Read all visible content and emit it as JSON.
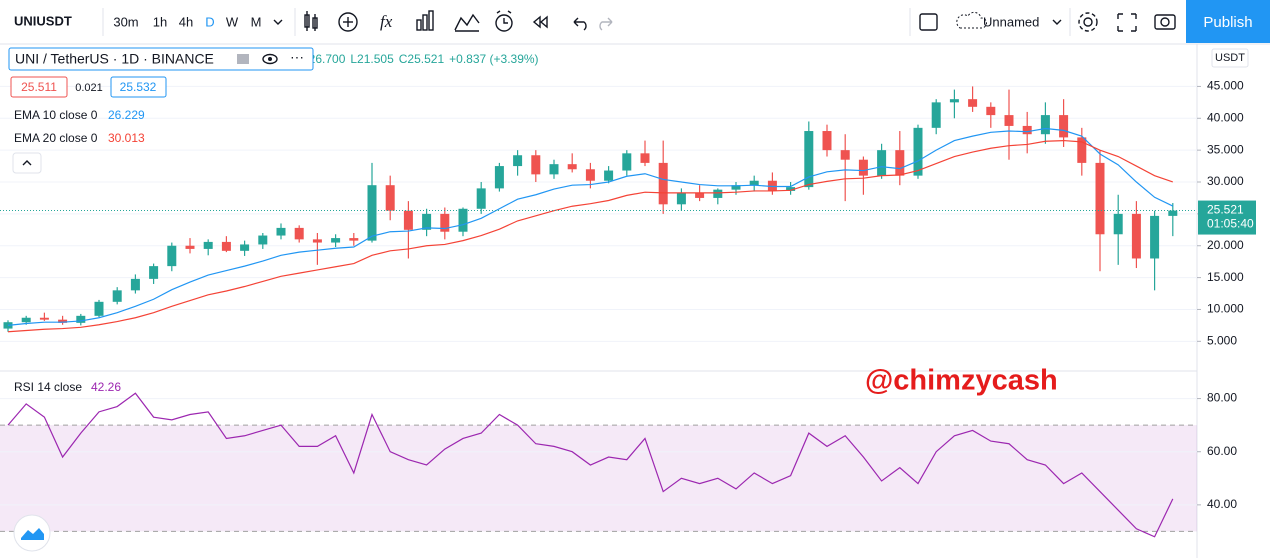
{
  "toolbar": {
    "symbol": "UNIUSDT",
    "intervals": [
      "30m",
      "1h",
      "4h",
      "D",
      "W",
      "M"
    ],
    "layout_name": "Unnamed",
    "publish": "Publish"
  },
  "legend": {
    "symbol_title": "UNI / TetherUS · 1D · BINANCE",
    "ohlc": [
      "H26.700",
      "L21.505",
      "C25.521",
      "+0.837 (+3.39%)"
    ],
    "bid": "25.511",
    "spread": "0.021",
    "ask": "25.532"
  },
  "watermark": "@chimzycash",
  "chart_data": [
    {
      "type": "candlestick",
      "y_axis_label": "USDT",
      "up_color": "#26a69a",
      "down_color": "#ef5350",
      "open": [
        7.0,
        8.0,
        8.7,
        8.4,
        7.9,
        9.0,
        11.2,
        13.0,
        14.8,
        16.8,
        20.0,
        19.5,
        20.6,
        19.2,
        20.2,
        21.6,
        22.8,
        21.0,
        20.5,
        21.2,
        20.8,
        29.5,
        25.5,
        22.5,
        25.0,
        22.2,
        25.8,
        29.0,
        32.5,
        34.2,
        31.2,
        32.8,
        32.0,
        30.2,
        31.8,
        34.5,
        33.0,
        26.5,
        28.2,
        27.5,
        28.8,
        29.5,
        30.2,
        28.6,
        29.2,
        38.0,
        35.0,
        33.5,
        31.0,
        35.0,
        31.0,
        38.5,
        42.5,
        43.0,
        41.8,
        40.5,
        38.8,
        37.5,
        40.5,
        37.0,
        33.0,
        21.8,
        25.0,
        18.0,
        24.684
      ],
      "high": [
        8.3,
        9.0,
        9.5,
        9.0,
        9.3,
        11.5,
        13.5,
        15.5,
        17.2,
        20.5,
        21.2,
        21.0,
        21.5,
        20.8,
        22.0,
        23.5,
        23.2,
        22.0,
        21.8,
        22.0,
        33.0,
        31.0,
        27.0,
        25.8,
        26.0,
        26.0,
        30.0,
        33.0,
        35.0,
        35.0,
        33.5,
        34.5,
        33.0,
        32.5,
        35.0,
        36.5,
        36.5,
        29.0,
        29.5,
        29.0,
        30.0,
        31.0,
        31.5,
        30.0,
        39.5,
        39.0,
        37.5,
        34.0,
        36.0,
        38.0,
        39.0,
        43.0,
        44.5,
        45.0,
        42.5,
        44.5,
        41.0,
        42.5,
        43.0,
        38.5,
        35.0,
        28.0,
        27.0,
        25.5,
        26.7
      ],
      "low": [
        6.5,
        7.6,
        8.2,
        7.6,
        7.5,
        8.8,
        10.8,
        12.5,
        14.0,
        16.0,
        18.8,
        18.5,
        19.0,
        18.4,
        19.5,
        21.0,
        20.5,
        17.0,
        19.8,
        20.0,
        20.5,
        24.0,
        18.0,
        21.5,
        21.0,
        21.5,
        25.0,
        28.5,
        31.0,
        30.0,
        30.5,
        31.5,
        29.0,
        29.8,
        31.0,
        32.5,
        25.0,
        25.5,
        27.0,
        26.5,
        28.0,
        28.5,
        28.0,
        28.0,
        28.8,
        34.0,
        27.0,
        28.0,
        30.5,
        29.5,
        30.5,
        37.5,
        40.0,
        41.0,
        38.5,
        33.5,
        34.5,
        36.0,
        35.5,
        31.0,
        16.0,
        17.0,
        16.5,
        13.0,
        21.505
      ],
      "close": [
        8.0,
        8.7,
        8.4,
        7.9,
        9.0,
        11.2,
        13.0,
        14.8,
        16.8,
        20.0,
        19.5,
        20.6,
        19.2,
        20.2,
        21.6,
        22.8,
        21.0,
        20.5,
        21.2,
        20.8,
        29.5,
        25.5,
        22.5,
        25.0,
        22.2,
        25.8,
        29.0,
        32.5,
        34.2,
        31.2,
        32.8,
        32.0,
        30.2,
        31.8,
        34.5,
        33.0,
        26.5,
        28.2,
        27.5,
        28.8,
        29.5,
        30.2,
        28.6,
        29.2,
        38.0,
        35.0,
        33.5,
        31.0,
        35.0,
        31.0,
        38.5,
        42.5,
        43.0,
        41.8,
        40.5,
        38.8,
        37.5,
        40.5,
        37.0,
        33.0,
        21.8,
        25.0,
        18.0,
        24.684,
        25.521
      ],
      "series": [
        {
          "name": "EMA 10 close 0",
          "legend_value": "26.229",
          "color": "#2196f3",
          "values": [
            7.5,
            7.8,
            8.0,
            8.0,
            8.2,
            8.7,
            9.5,
            10.5,
            11.6,
            13.1,
            14.3,
            15.4,
            16.1,
            16.8,
            17.6,
            18.5,
            19.0,
            19.3,
            19.6,
            19.8,
            21.5,
            22.2,
            22.3,
            22.8,
            22.7,
            23.3,
            24.3,
            25.8,
            27.3,
            28.0,
            28.9,
            29.5,
            29.6,
            30.0,
            30.9,
            31.3,
            30.4,
            30.0,
            29.6,
            29.4,
            29.4,
            29.5,
            29.3,
            29.3,
            30.8,
            31.6,
            31.9,
            31.8,
            32.4,
            32.1,
            33.3,
            35.0,
            36.5,
            37.2,
            37.8,
            38.0,
            37.9,
            38.4,
            38.1,
            37.2,
            34.4,
            32.7,
            30.0,
            27.6,
            26.229
          ]
        },
        {
          "name": "EMA 20 close 0",
          "legend_value": "30.013",
          "color": "#f44336",
          "values": [
            6.5,
            6.7,
            6.9,
            7.0,
            7.2,
            7.6,
            8.1,
            8.7,
            9.5,
            10.5,
            11.4,
            12.3,
            12.9,
            13.6,
            14.4,
            15.2,
            15.7,
            16.2,
            16.7,
            17.2,
            18.5,
            19.2,
            19.5,
            20.0,
            20.2,
            20.8,
            21.6,
            22.6,
            23.9,
            24.7,
            25.5,
            26.2,
            26.6,
            27.1,
            27.9,
            28.4,
            28.3,
            28.3,
            28.3,
            28.3,
            28.4,
            28.6,
            28.6,
            28.7,
            29.6,
            30.1,
            30.5,
            30.6,
            31.0,
            31.1,
            31.8,
            32.9,
            34.0,
            34.7,
            35.3,
            35.7,
            35.9,
            36.4,
            36.5,
            36.3,
            35.0,
            34.0,
            32.5,
            31.0,
            30.013
          ]
        }
      ],
      "last_price": {
        "label": "25.521",
        "countdown": "01:05:40"
      },
      "ylim": [
        0.5,
        51.5
      ],
      "yticks": [
        {
          "value": 5,
          "label": "5.000"
        },
        {
          "value": 10,
          "label": "10.000"
        },
        {
          "value": 15,
          "label": "15.000"
        },
        {
          "value": 20,
          "label": "20.000"
        },
        {
          "value": 25,
          "label": "25.000"
        },
        {
          "value": 30,
          "label": "30.000"
        },
        {
          "value": 35,
          "label": "35.000"
        },
        {
          "value": 40,
          "label": "40.000"
        },
        {
          "value": 45,
          "label": "45.000"
        }
      ],
      "grid": true
    },
    {
      "type": "line",
      "name": "RSI 14 close",
      "legend_value": "42.26",
      "color": "#9c27b0",
      "values": [
        70,
        78,
        73,
        58,
        67,
        75,
        77,
        82,
        73,
        72,
        74,
        75,
        65,
        66,
        68,
        70,
        62,
        62,
        66,
        52,
        74,
        60,
        57,
        55,
        61,
        65,
        67,
        74,
        70,
        63,
        62,
        60,
        55,
        58,
        57,
        65,
        45,
        50,
        48,
        50,
        46,
        52,
        48,
        51,
        67,
        62,
        66,
        58,
        49,
        54,
        48,
        60,
        66,
        68,
        64,
        63,
        57,
        55,
        48,
        52,
        45,
        38,
        31,
        28,
        42.26
      ],
      "band": [
        30,
        70
      ],
      "ylim": [
        20,
        90
      ],
      "yticks": [
        {
          "value": 40,
          "label": "40.00"
        },
        {
          "value": 60,
          "label": "60.00"
        },
        {
          "value": 80,
          "label": "80.00"
        }
      ],
      "grid": true
    }
  ]
}
